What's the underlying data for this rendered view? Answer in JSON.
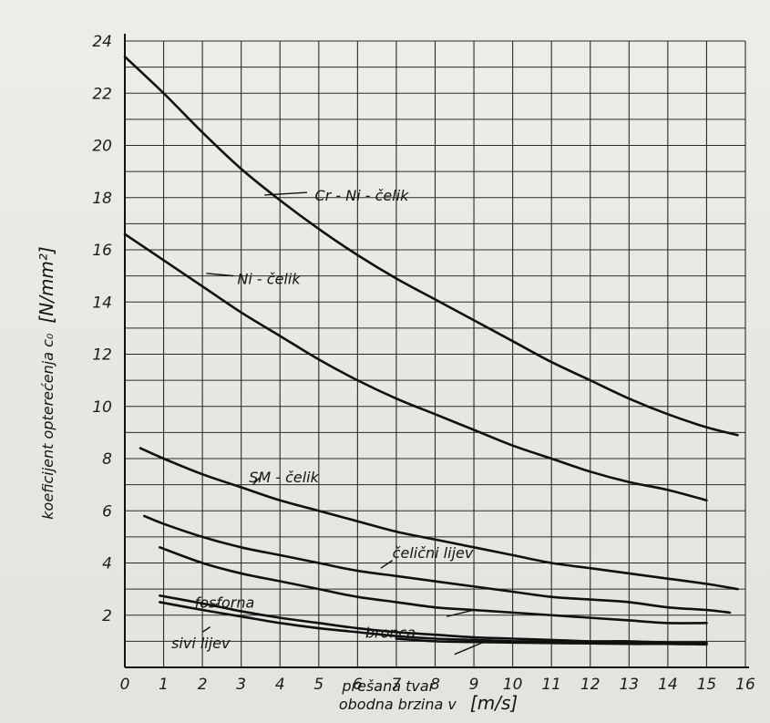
{
  "chart_data": {
    "type": "line",
    "xlabel": "obodna brzina  v",
    "xunit": "[m/s]",
    "ylabel": "koeficijent opterećenja c₀",
    "yunit": "[N/mm²]",
    "xlim": [
      0,
      16
    ],
    "ylim": [
      0,
      24
    ],
    "grid": true,
    "x_ticks": [
      "0",
      "1",
      "2",
      "3",
      "4",
      "5",
      "6",
      "7",
      "8",
      "9",
      "10",
      "11",
      "12",
      "13",
      "14",
      "15",
      "16"
    ],
    "y_ticks": [
      "2",
      "4",
      "6",
      "8",
      "10",
      "12",
      "14",
      "16",
      "18",
      "20",
      "22",
      "24"
    ],
    "series": [
      {
        "name": "Cr - Ni - čelik",
        "points": [
          [
            0,
            23.4
          ],
          [
            1,
            22.0
          ],
          [
            2,
            20.5
          ],
          [
            3,
            19.1
          ],
          [
            4,
            17.9
          ],
          [
            5,
            16.8
          ],
          [
            6,
            15.8
          ],
          [
            7,
            14.9
          ],
          [
            8,
            14.1
          ],
          [
            9,
            13.3
          ],
          [
            10,
            12.5
          ],
          [
            11,
            11.7
          ],
          [
            12,
            11.0
          ],
          [
            13,
            10.3
          ],
          [
            14,
            9.7
          ],
          [
            15,
            9.2
          ],
          [
            15.8,
            8.9
          ]
        ]
      },
      {
        "name": "Ni - čelik",
        "points": [
          [
            0,
            16.6
          ],
          [
            1,
            15.6
          ],
          [
            2,
            14.6
          ],
          [
            3,
            13.6
          ],
          [
            4,
            12.7
          ],
          [
            5,
            11.8
          ],
          [
            6,
            11.0
          ],
          [
            7,
            10.3
          ],
          [
            8,
            9.7
          ],
          [
            9,
            9.1
          ],
          [
            10,
            8.5
          ],
          [
            11,
            8.0
          ],
          [
            12,
            7.5
          ],
          [
            13,
            7.1
          ],
          [
            14,
            6.8
          ],
          [
            15,
            6.4
          ]
        ]
      },
      {
        "name": "SM - čelik",
        "points": [
          [
            0.4,
            8.4
          ],
          [
            1,
            8.0
          ],
          [
            2,
            7.4
          ],
          [
            3,
            6.9
          ],
          [
            4,
            6.4
          ],
          [
            5,
            6.0
          ],
          [
            6,
            5.6
          ],
          [
            7,
            5.2
          ],
          [
            8,
            4.9
          ],
          [
            9,
            4.6
          ],
          [
            10,
            4.3
          ],
          [
            11,
            4.0
          ],
          [
            12,
            3.8
          ],
          [
            13,
            3.6
          ],
          [
            14,
            3.4
          ],
          [
            15,
            3.2
          ],
          [
            15.8,
            3.0
          ]
        ]
      },
      {
        "name": "čelični lijev",
        "points": [
          [
            0.5,
            5.8
          ],
          [
            1,
            5.5
          ],
          [
            2,
            5.0
          ],
          [
            3,
            4.6
          ],
          [
            4,
            4.3
          ],
          [
            5,
            4.0
          ],
          [
            6,
            3.7
          ],
          [
            7,
            3.5
          ],
          [
            8,
            3.3
          ],
          [
            9,
            3.1
          ],
          [
            10,
            2.9
          ],
          [
            11,
            2.7
          ],
          [
            12,
            2.6
          ],
          [
            13,
            2.5
          ],
          [
            14,
            2.3
          ],
          [
            15,
            2.2
          ],
          [
            15.6,
            2.1
          ]
        ]
      },
      {
        "name": "bronca",
        "points": [
          [
            0.9,
            4.6
          ],
          [
            2,
            4.0
          ],
          [
            3,
            3.6
          ],
          [
            4,
            3.3
          ],
          [
            5,
            3.0
          ],
          [
            6,
            2.7
          ],
          [
            7,
            2.5
          ],
          [
            8,
            2.3
          ],
          [
            9,
            2.2
          ],
          [
            10,
            2.1
          ],
          [
            11,
            2.0
          ],
          [
            12,
            1.9
          ],
          [
            13,
            1.8
          ],
          [
            14,
            1.7
          ],
          [
            15,
            1.7
          ]
        ]
      },
      {
        "name": "fosforna",
        "points": [
          [
            0.9,
            2.75
          ],
          [
            2,
            2.45
          ],
          [
            3,
            2.15
          ],
          [
            4,
            1.9
          ],
          [
            5,
            1.7
          ],
          [
            6,
            1.5
          ],
          [
            7,
            1.35
          ],
          [
            8,
            1.25
          ],
          [
            9,
            1.15
          ],
          [
            10,
            1.1
          ],
          [
            11,
            1.05
          ],
          [
            12,
            1.0
          ],
          [
            13,
            1.0
          ],
          [
            14,
            0.95
          ],
          [
            15,
            0.95
          ]
        ]
      },
      {
        "name": "sivi lijev",
        "points": [
          [
            0.9,
            2.5
          ],
          [
            2,
            2.2
          ],
          [
            3,
            1.95
          ],
          [
            4,
            1.7
          ],
          [
            5,
            1.5
          ],
          [
            6,
            1.35
          ],
          [
            7,
            1.2
          ],
          [
            8,
            1.1
          ],
          [
            9,
            1.05
          ],
          [
            10,
            1.0
          ],
          [
            11,
            1.0
          ],
          [
            12,
            0.95
          ],
          [
            13,
            0.92
          ],
          [
            14,
            0.9
          ],
          [
            15,
            0.9
          ]
        ]
      },
      {
        "name": "prešana tvar",
        "points": [
          [
            7,
            1.1
          ],
          [
            8,
            1.0
          ],
          [
            9,
            0.97
          ],
          [
            10,
            0.95
          ],
          [
            11,
            0.93
          ],
          [
            12,
            0.92
          ],
          [
            13,
            0.9
          ],
          [
            14,
            0.9
          ],
          [
            15,
            0.88
          ]
        ]
      }
    ]
  }
}
